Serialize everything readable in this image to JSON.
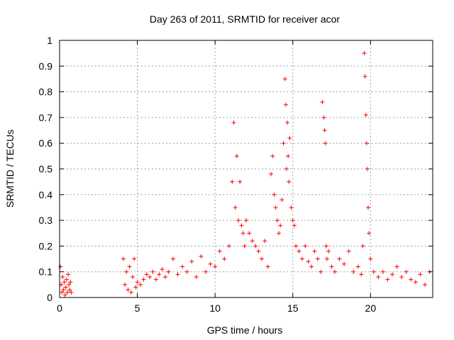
{
  "chart_data": {
    "type": "scatter",
    "title": "Day 263 of 2011, SRMTID for receiver acor",
    "xlabel": "GPS time / hours",
    "ylabel": "SRMTID / TECUs",
    "xlim": [
      0,
      24
    ],
    "ylim": [
      0,
      1
    ],
    "xticks": [
      0,
      5,
      10,
      15,
      20
    ],
    "yticks": [
      0,
      0.1,
      0.2,
      0.3,
      0.4,
      0.5,
      0.6,
      0.7,
      0.8,
      0.9,
      1
    ],
    "ytick_labels": [
      "0",
      "0.1",
      "0.2",
      "0.3",
      "0.4",
      "0.5",
      "0.6",
      "0.7",
      "0.8",
      "0.9",
      "1"
    ],
    "grid": true,
    "marker": "+",
    "color": "#ff0000",
    "series": [
      {
        "name": "SRMTID",
        "x": [
          0.05,
          0.1,
          0.15,
          0.2,
          0.25,
          0.3,
          0.35,
          0.4,
          0.45,
          0.5,
          0.55,
          0.6,
          0.65,
          0.7,
          0.75,
          4.1,
          4.2,
          4.3,
          4.4,
          4.5,
          4.6,
          4.7,
          4.8,
          4.9,
          5.0,
          5.2,
          5.4,
          5.6,
          5.8,
          6.0,
          6.2,
          6.4,
          6.6,
          6.8,
          7.0,
          7.3,
          7.6,
          7.9,
          8.2,
          8.5,
          8.8,
          9.1,
          9.4,
          9.7,
          10.0,
          10.3,
          10.6,
          10.9,
          11.1,
          11.2,
          11.3,
          11.4,
          11.5,
          11.6,
          11.7,
          11.8,
          11.9,
          12.0,
          12.2,
          12.4,
          12.6,
          12.8,
          13.0,
          13.2,
          13.4,
          13.6,
          13.7,
          13.8,
          13.9,
          14.0,
          14.1,
          14.2,
          14.3,
          14.4,
          14.5,
          14.55,
          14.6,
          14.65,
          14.7,
          14.75,
          14.8,
          14.9,
          15.0,
          15.1,
          15.2,
          15.4,
          15.6,
          15.8,
          16.0,
          16.2,
          16.4,
          16.6,
          16.8,
          16.9,
          17.0,
          17.05,
          17.1,
          17.15,
          17.2,
          17.3,
          17.5,
          17.7,
          18.0,
          18.3,
          18.6,
          18.9,
          19.2,
          19.4,
          19.5,
          19.6,
          19.65,
          19.7,
          19.75,
          19.8,
          19.85,
          19.9,
          20.0,
          20.2,
          20.5,
          20.8,
          21.1,
          21.4,
          21.7,
          22.0,
          22.3,
          22.6,
          22.9,
          23.2,
          23.5,
          23.8
        ],
        "y": [
          0.12,
          0.05,
          0.02,
          0.08,
          0.03,
          0.06,
          0.01,
          0.04,
          0.07,
          0.02,
          0.09,
          0.05,
          0.03,
          0.06,
          0.02,
          0.15,
          0.05,
          0.1,
          0.03,
          0.12,
          0.02,
          0.08,
          0.15,
          0.04,
          0.06,
          0.05,
          0.07,
          0.09,
          0.08,
          0.1,
          0.07,
          0.09,
          0.11,
          0.08,
          0.1,
          0.15,
          0.09,
          0.12,
          0.1,
          0.14,
          0.08,
          0.16,
          0.1,
          0.13,
          0.12,
          0.18,
          0.15,
          0.2,
          0.45,
          0.68,
          0.35,
          0.55,
          0.3,
          0.45,
          0.28,
          0.25,
          0.2,
          0.3,
          0.25,
          0.22,
          0.2,
          0.18,
          0.15,
          0.22,
          0.12,
          0.48,
          0.55,
          0.4,
          0.35,
          0.3,
          0.25,
          0.28,
          0.38,
          0.6,
          0.85,
          0.75,
          0.5,
          0.68,
          0.55,
          0.45,
          0.62,
          0.35,
          0.3,
          0.28,
          0.2,
          0.18,
          0.15,
          0.2,
          0.14,
          0.12,
          0.18,
          0.15,
          0.1,
          0.76,
          0.7,
          0.65,
          0.6,
          0.2,
          0.15,
          0.18,
          0.12,
          0.1,
          0.15,
          0.13,
          0.18,
          0.1,
          0.12,
          0.09,
          0.2,
          0.95,
          0.86,
          0.71,
          0.6,
          0.5,
          0.35,
          0.25,
          0.15,
          0.1,
          0.08,
          0.1,
          0.07,
          0.09,
          0.12,
          0.08,
          0.1,
          0.07,
          0.06,
          0.09,
          0.05,
          0.1
        ]
      }
    ]
  }
}
